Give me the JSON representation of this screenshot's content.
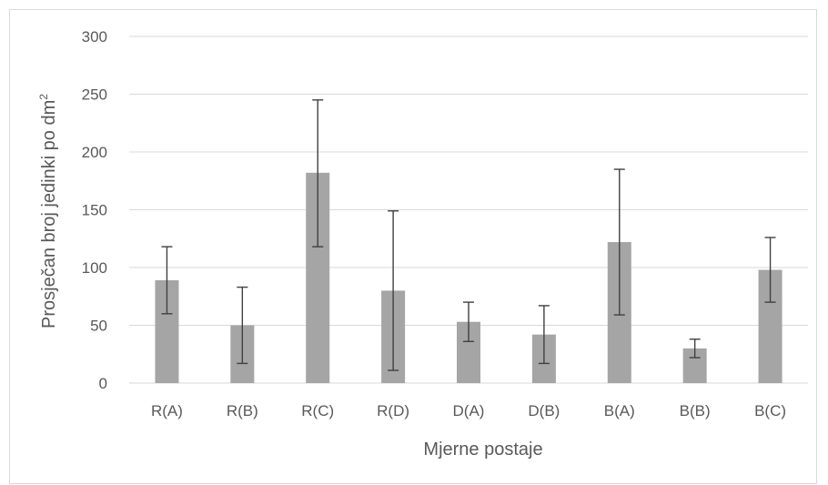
{
  "chart_data": {
    "type": "bar",
    "categories": [
      "R(A)",
      "R(B)",
      "R(C)",
      "R(D)",
      "D(A)",
      "D(B)",
      "B(A)",
      "B(B)",
      "B(C)"
    ],
    "values": [
      89,
      50,
      182,
      80,
      53,
      42,
      122,
      30,
      98
    ],
    "error_low": [
      60,
      17,
      118,
      11,
      36,
      17,
      59,
      22,
      70
    ],
    "error_high": [
      118,
      83,
      245,
      149,
      70,
      67,
      185,
      38,
      126
    ],
    "xlabel": "Mjerne postaje",
    "ylabel": "Prosječan broj jedinki po dm",
    "ylabel_superscript": "2",
    "ylim": [
      0,
      300
    ],
    "yticks": [
      0,
      50,
      100,
      150,
      200,
      250,
      300
    ],
    "grid": true,
    "colors": {
      "bar": "#a5a5a5",
      "error_bar": "#404040",
      "grid": "#d9d9d9",
      "text": "#595959"
    }
  }
}
